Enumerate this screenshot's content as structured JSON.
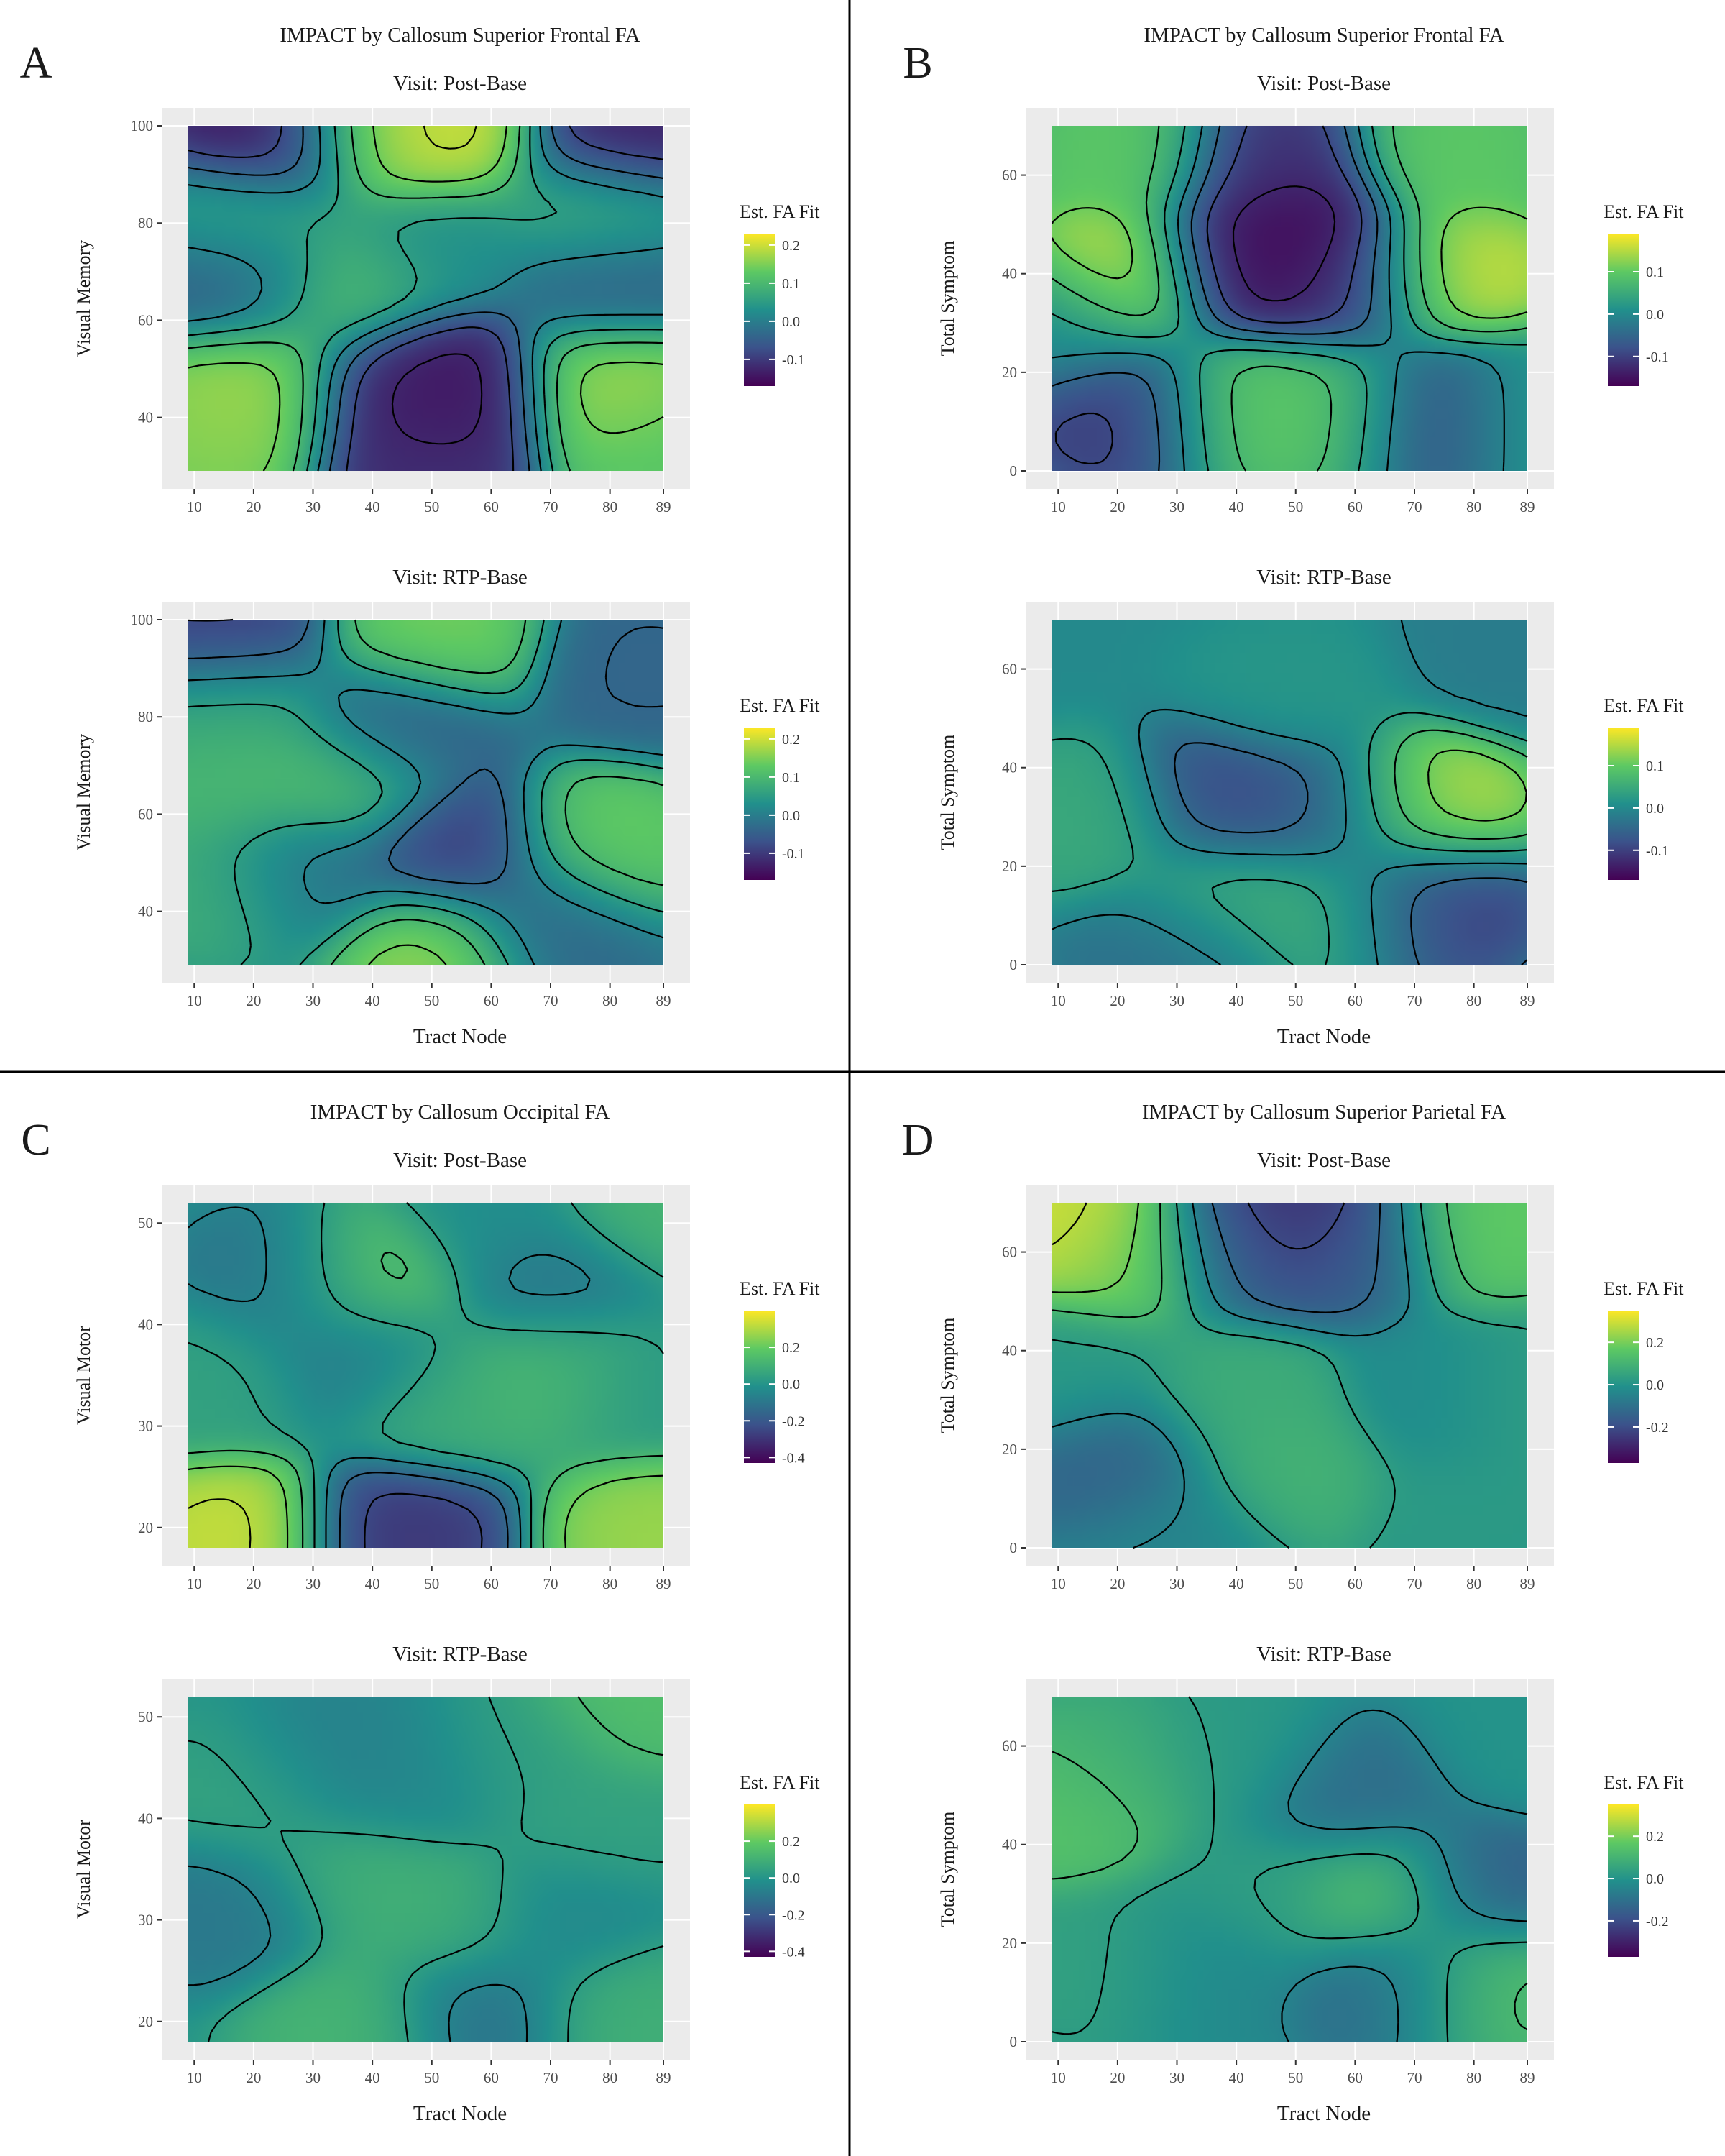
{
  "colors": {
    "panel_background": "#EBEBEB",
    "grid": "#FFFFFF",
    "contour": "#000000",
    "divider": "#000000",
    "viridis": [
      "#440154",
      "#3B528B",
      "#21908C",
      "#5DC963",
      "#FDE725"
    ]
  },
  "chart_data": [
    {
      "panel": "A",
      "type": "heatmap",
      "title": "IMPACT by Callosum Superior Frontal FA",
      "xlabel": "Tract Node",
      "legend_title": "Est. FA Fit",
      "legend_placement": "right",
      "grid": true,
      "contours": true,
      "xticks": [
        10,
        20,
        30,
        40,
        50,
        60,
        70,
        80,
        89
      ],
      "xlim": [
        9,
        89
      ],
      "plots": [
        {
          "subtitle": "Visit: Post-Base",
          "ylabel": "Visual Memory",
          "yticks": [
            40,
            60,
            80,
            100
          ],
          "ylim": [
            29,
            100
          ],
          "legend_ticks": [
            "0.2",
            "0.1",
            "0.0",
            "-0.1"
          ],
          "legend_values": [
            0.2,
            0.1,
            0.0,
            -0.1
          ],
          "fill_range": [
            -0.17,
            0.23
          ],
          "surface": [
            {
              "x": 24,
              "y": 98,
              "v": -0.16
            },
            {
              "x": 82,
              "y": 98,
              "v": -0.14
            },
            {
              "x": 52,
              "y": 99,
              "v": 0.21
            },
            {
              "x": 40,
              "y": 99,
              "v": 0.18
            },
            {
              "x": 21,
              "y": 47,
              "v": 0.18
            },
            {
              "x": 80,
              "y": 47,
              "v": 0.18
            },
            {
              "x": 44,
              "y": 46,
              "v": -0.14
            },
            {
              "x": 54,
              "y": 46,
              "v": -0.15
            },
            {
              "x": 48,
              "y": 32,
              "v": -0.12
            },
            {
              "x": 18,
              "y": 68,
              "v": -0.06
            },
            {
              "x": 80,
              "y": 68,
              "v": -0.05
            },
            {
              "x": 35,
              "y": 66,
              "v": 0.12
            },
            {
              "x": 14,
              "y": 36,
              "v": 0.16
            },
            {
              "x": 88,
              "y": 35,
              "v": 0.13
            },
            {
              "x": 20,
              "y": 80,
              "v": 0.08
            },
            {
              "x": 78,
              "y": 82,
              "v": 0.09
            },
            {
              "x": 50,
              "y": 75,
              "v": 0.03
            }
          ]
        },
        {
          "subtitle": "Visit: RTP-Base",
          "ylabel": "Visual Memory",
          "yticks": [
            40,
            60,
            80,
            100
          ],
          "ylim": [
            29,
            100
          ],
          "legend_ticks": [
            "0.2",
            "0.1",
            "0.0",
            "-0.1"
          ],
          "legend_values": [
            0.2,
            0.1,
            0.0,
            -0.1
          ],
          "fill_range": [
            -0.17,
            0.23
          ],
          "surface": [
            {
              "x": 50,
              "y": 96,
              "v": 0.15
            },
            {
              "x": 15,
              "y": 97,
              "v": -0.1
            },
            {
              "x": 16,
              "y": 65,
              "v": 0.1
            },
            {
              "x": 16,
              "y": 82,
              "v": 0.08
            },
            {
              "x": 16,
              "y": 45,
              "v": 0.09
            },
            {
              "x": 35,
              "y": 67,
              "v": 0.12
            },
            {
              "x": 50,
              "y": 32,
              "v": 0.17
            },
            {
              "x": 54,
              "y": 52,
              "v": -0.1
            },
            {
              "x": 79,
              "y": 53,
              "v": 0.14
            },
            {
              "x": 44,
              "y": 78,
              "v": -0.06
            },
            {
              "x": 70,
              "y": 38,
              "v": -0.04
            },
            {
              "x": 86,
              "y": 90,
              "v": -0.04
            },
            {
              "x": 28,
              "y": 48,
              "v": -0.03
            }
          ]
        }
      ]
    },
    {
      "panel": "B",
      "type": "heatmap",
      "title": "IMPACT by Callosum Superior Frontal FA",
      "xlabel": "Tract Node",
      "legend_title": "Est. FA Fit",
      "legend_placement": "right",
      "grid": true,
      "contours": true,
      "xticks": [
        10,
        20,
        30,
        40,
        50,
        60,
        70,
        80,
        89
      ],
      "xlim": [
        9,
        89
      ],
      "plots": [
        {
          "subtitle": "Visit: Post-Base",
          "ylabel": "Total Symptom",
          "yticks": [
            0,
            20,
            40,
            60
          ],
          "ylim": [
            0,
            70
          ],
          "legend_ticks": [
            "0.1",
            "0.0",
            "-0.1"
          ],
          "legend_values": [
            0.1,
            0.0,
            -0.1
          ],
          "fill_range": [
            -0.17,
            0.19
          ],
          "surface": [
            {
              "x": 22,
              "y": 40,
              "v": 0.18
            },
            {
              "x": 75,
              "y": 40,
              "v": 0.17
            },
            {
              "x": 40,
              "y": 42,
              "v": -0.16
            },
            {
              "x": 50,
              "y": 47,
              "v": -0.17
            },
            {
              "x": 59,
              "y": 38,
              "v": -0.12
            },
            {
              "x": 45,
              "y": 62,
              "v": -0.12
            },
            {
              "x": 22,
              "y": 12,
              "v": -0.11
            },
            {
              "x": 73,
              "y": 12,
              "v": -0.11
            },
            {
              "x": 40,
              "y": 13,
              "v": 0.1
            },
            {
              "x": 58,
              "y": 13,
              "v": 0.1
            },
            {
              "x": 22,
              "y": 64,
              "v": 0.1
            },
            {
              "x": 77,
              "y": 64,
              "v": 0.1
            },
            {
              "x": 12,
              "y": 30,
              "v": 0.0
            },
            {
              "x": 87,
              "y": 12,
              "v": 0.03
            }
          ]
        },
        {
          "subtitle": "Visit: RTP-Base",
          "ylabel": "Total Symptom",
          "yticks": [
            0,
            20,
            40,
            60
          ],
          "ylim": [
            0,
            70
          ],
          "legend_ticks": [
            "0.1",
            "0.0",
            "-0.1"
          ],
          "legend_values": [
            0.1,
            0.0,
            -0.1
          ],
          "fill_range": [
            -0.17,
            0.19
          ],
          "surface": [
            {
              "x": 71,
              "y": 32,
              "v": 0.16
            },
            {
              "x": 39,
              "y": 33,
              "v": -0.09
            },
            {
              "x": 57,
              "y": 31,
              "v": -0.07
            },
            {
              "x": 71,
              "y": 13,
              "v": -0.11
            },
            {
              "x": 39,
              "y": 13,
              "v": 0.06
            },
            {
              "x": 58,
              "y": 12,
              "v": 0.06
            },
            {
              "x": 16,
              "y": 29,
              "v": 0.05
            },
            {
              "x": 30,
              "y": 3,
              "v": -0.04
            },
            {
              "x": 85,
              "y": 64,
              "v": -0.02
            },
            {
              "x": 50,
              "y": 55,
              "v": 0.02
            }
          ]
        }
      ]
    },
    {
      "panel": "C",
      "type": "heatmap",
      "title": "IMPACT by Callosum Occipital FA",
      "xlabel": "Tract Node",
      "legend_title": "Est. FA Fit",
      "legend_placement": "right",
      "grid": true,
      "contours": true,
      "xticks": [
        10,
        20,
        30,
        40,
        50,
        60,
        70,
        80,
        89
      ],
      "xlim": [
        9,
        89
      ],
      "plots": [
        {
          "subtitle": "Visit: Post-Base",
          "ylabel": "Visual Motor",
          "yticks": [
            20,
            30,
            40,
            50
          ],
          "ylim": [
            18,
            52
          ],
          "legend_ticks": [
            "0.2",
            "0.0",
            "-0.2",
            "-0.4"
          ],
          "legend_values": [
            0.2,
            0.0,
            -0.2,
            -0.4
          ],
          "fill_range": [
            -0.43,
            0.4
          ],
          "surface": [
            {
              "x": 17,
              "y": 19,
              "v": 0.34
            },
            {
              "x": 88,
              "y": 19,
              "v": 0.28
            },
            {
              "x": 44,
              "y": 19,
              "v": -0.3
            },
            {
              "x": 39,
              "y": 44,
              "v": 0.22
            },
            {
              "x": 26,
              "y": 44,
              "v": -0.12
            },
            {
              "x": 71,
              "y": 44,
              "v": -0.12
            },
            {
              "x": 38,
              "y": 37,
              "v": -0.12
            },
            {
              "x": 71,
              "y": 36,
              "v": 0.14
            },
            {
              "x": 50,
              "y": 33,
              "v": 0.1
            },
            {
              "x": 15,
              "y": 35,
              "v": 0.05
            },
            {
              "x": 85,
              "y": 35,
              "v": 0.02
            },
            {
              "x": 60,
              "y": 50,
              "v": -0.02
            },
            {
              "x": 86,
              "y": 51,
              "v": 0.12
            }
          ]
        },
        {
          "subtitle": "Visit: RTP-Base",
          "ylabel": "Visual Motor",
          "yticks": [
            20,
            30,
            40,
            50
          ],
          "ylim": [
            18,
            52
          ],
          "legend_ticks": [
            "0.2",
            "0.0",
            "-0.2",
            "-0.4"
          ],
          "legend_values": [
            0.2,
            0.0,
            -0.2,
            -0.4
          ],
          "fill_range": [
            -0.43,
            0.4
          ],
          "surface": [
            {
              "x": 84,
              "y": 51,
              "v": 0.16
            },
            {
              "x": 58,
              "y": 21,
              "v": -0.12
            },
            {
              "x": 37,
              "y": 20,
              "v": 0.12
            },
            {
              "x": 82,
              "y": 21,
              "v": 0.1
            },
            {
              "x": 17,
              "y": 31,
              "v": -0.1
            },
            {
              "x": 34,
              "y": 45,
              "v": -0.08
            },
            {
              "x": 37,
              "y": 34,
              "v": 0.1
            },
            {
              "x": 53,
              "y": 30,
              "v": 0.1
            },
            {
              "x": 78,
              "y": 39,
              "v": 0.05
            },
            {
              "x": 48,
              "y": 44,
              "v": -0.04
            },
            {
              "x": 65,
              "y": 46,
              "v": 0.04
            },
            {
              "x": 22,
              "y": 42,
              "v": 0.06
            },
            {
              "x": 72,
              "y": 30,
              "v": -0.05
            }
          ]
        }
      ]
    },
    {
      "panel": "D",
      "type": "heatmap",
      "title": "IMPACT by Callosum Superior Parietal FA",
      "xlabel": "Tract Node",
      "legend_title": "Est. FA Fit",
      "legend_placement": "right",
      "grid": true,
      "contours": true,
      "xticks": [
        10,
        20,
        30,
        40,
        50,
        60,
        70,
        80,
        89
      ],
      "xlim": [
        9,
        89
      ],
      "plots": [
        {
          "subtitle": "Visit: Post-Base",
          "ylabel": "Total Symptom",
          "yticks": [
            0,
            20,
            40,
            60
          ],
          "ylim": [
            0,
            70
          ],
          "legend_ticks": [
            "0.2",
            "0.0",
            "-0.2"
          ],
          "legend_values": [
            0.2,
            0.0,
            -0.2
          ],
          "fill_range": [
            -0.37,
            0.35
          ],
          "surface": [
            {
              "x": 12,
              "y": 66,
              "v": 0.32
            },
            {
              "x": 22,
              "y": 60,
              "v": 0.2
            },
            {
              "x": 50,
              "y": 67,
              "v": -0.32
            },
            {
              "x": 40,
              "y": 62,
              "v": -0.15
            },
            {
              "x": 60,
              "y": 62,
              "v": -0.15
            },
            {
              "x": 80,
              "y": 65,
              "v": 0.18
            },
            {
              "x": 20,
              "y": 17,
              "v": -0.15
            },
            {
              "x": 48,
              "y": 16,
              "v": 0.1
            },
            {
              "x": 40,
              "y": 30,
              "v": 0.08
            },
            {
              "x": 75,
              "y": 30,
              "v": -0.03
            },
            {
              "x": 87,
              "y": 30,
              "v": 0.04
            },
            {
              "x": 12,
              "y": 35,
              "v": 0.02
            },
            {
              "x": 30,
              "y": 3,
              "v": -0.04
            },
            {
              "x": 80,
              "y": 8,
              "v": 0.02
            }
          ]
        },
        {
          "subtitle": "Visit: RTP-Base",
          "ylabel": "Total Symptom",
          "yticks": [
            0,
            20,
            40,
            60
          ],
          "ylim": [
            0,
            70
          ],
          "legend_ticks": [
            "0.2",
            "0.0",
            "-0.2"
          ],
          "legend_values": [
            0.2,
            0.0,
            -0.2
          ],
          "fill_range": [
            -0.37,
            0.35
          ],
          "surface": [
            {
              "x": 12,
              "y": 48,
              "v": 0.16
            },
            {
              "x": 20,
              "y": 55,
              "v": 0.08
            },
            {
              "x": 60,
              "y": 49,
              "v": -0.12
            },
            {
              "x": 65,
              "y": 30,
              "v": 0.17
            },
            {
              "x": 80,
              "y": 32,
              "v": -0.16
            },
            {
              "x": 67,
              "y": 12,
              "v": -0.13
            },
            {
              "x": 80,
              "y": 12,
              "v": 0.15
            },
            {
              "x": 21,
              "y": 15,
              "v": 0.05
            },
            {
              "x": 33,
              "y": 14,
              "v": -0.04
            },
            {
              "x": 45,
              "y": 30,
              "v": 0.03
            },
            {
              "x": 88,
              "y": 60,
              "v": 0.0
            },
            {
              "x": 40,
              "y": 58,
              "v": 0.02
            }
          ]
        }
      ]
    }
  ]
}
